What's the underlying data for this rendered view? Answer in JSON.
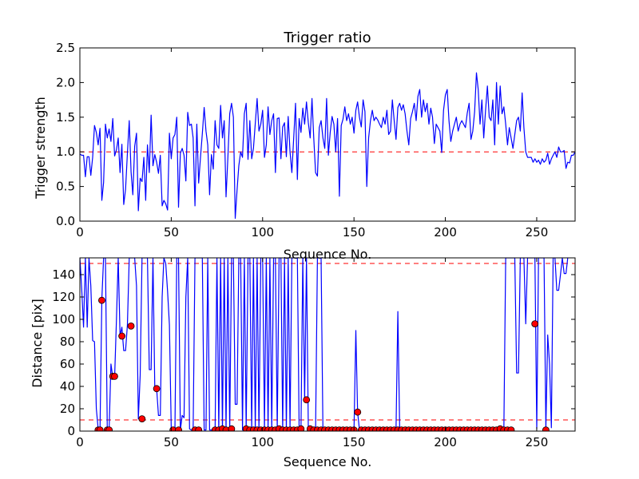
{
  "chart_data": [
    {
      "type": "line",
      "title": "Trigger ratio",
      "xlabel": "Sequence No.",
      "ylabel": "Trigger strength",
      "xlim": [
        0,
        271
      ],
      "ylim": [
        0.0,
        2.5
      ],
      "xticks": [
        0,
        50,
        100,
        150,
        200,
        250
      ],
      "yticks": [
        "0.0",
        "0.5",
        "1.0",
        "1.5",
        "2.0",
        "2.5"
      ],
      "line_color": "#0000ff",
      "reference_lines": [
        {
          "y": 1.0,
          "color": "#ff0000",
          "style": "dashed"
        }
      ],
      "series": [
        {
          "name": "Trigger strength",
          "x_start": 0,
          "x_step": 1,
          "values": [
            0.97,
            0.95,
            0.95,
            0.64,
            0.93,
            0.93,
            0.66,
            0.92,
            1.38,
            1.28,
            1.1,
            1.34,
            0.3,
            0.56,
            1.4,
            1.2,
            1.33,
            1.15,
            1.48,
            0.94,
            1.03,
            1.2,
            0.7,
            1.11,
            0.24,
            0.46,
            0.98,
            1.45,
            0.71,
            0.38,
            1.08,
            1.27,
            0.15,
            0.62,
            0.57,
            0.92,
            0.3,
            1.1,
            0.7,
            1.53,
            0.8,
            0.96,
            0.85,
            0.69,
            0.95,
            0.22,
            0.3,
            0.25,
            0.16,
            1.27,
            0.9,
            1.2,
            1.25,
            1.5,
            0.2,
            0.98,
            1.05,
            0.95,
            0.58,
            1.57,
            1.38,
            1.4,
            1.2,
            0.22,
            1.4,
            0.55,
            0.92,
            1.26,
            1.64,
            1.3,
            1.1,
            0.38,
            0.96,
            0.75,
            1.45,
            1.1,
            1.05,
            1.67,
            1.2,
            1.45,
            0.35,
            0.92,
            1.55,
            1.7,
            1.5,
            0.04,
            0.45,
            0.8,
            1.0,
            0.92,
            1.55,
            1.7,
            0.89,
            1.45,
            0.9,
            1.05,
            1.41,
            1.77,
            1.3,
            1.4,
            1.6,
            0.92,
            1.1,
            1.65,
            1.25,
            1.45,
            1.55,
            0.7,
            1.48,
            1.49,
            0.9,
            1.36,
            1.42,
            0.93,
            1.51,
            1.0,
            0.7,
            1.2,
            1.7,
            0.6,
            1.48,
            1.28,
            1.63,
            1.4,
            1.72,
            1.42,
            1.2,
            1.77,
            1.2,
            0.7,
            0.65,
            1.35,
            1.45,
            1.2,
            1.05,
            1.77,
            0.95,
            1.28,
            1.51,
            1.4,
            1.0,
            1.48,
            0.36,
            1.38,
            1.47,
            1.65,
            1.45,
            1.55,
            1.4,
            1.5,
            1.27,
            1.6,
            1.72,
            1.5,
            1.36,
            1.75,
            1.58,
            0.5,
            1.2,
            1.45,
            1.6,
            1.45,
            1.5,
            1.46,
            1.4,
            1.35,
            1.5,
            1.4,
            1.6,
            1.25,
            1.3,
            1.75,
            1.45,
            1.18,
            1.64,
            1.7,
            1.6,
            1.68,
            1.55,
            1.3,
            1.1,
            1.48,
            1.58,
            1.7,
            1.45,
            1.8,
            1.9,
            1.5,
            1.75,
            1.58,
            1.7,
            1.4,
            1.63,
            1.5,
            1.12,
            1.4,
            1.35,
            1.3,
            0.99,
            1.6,
            1.82,
            1.9,
            1.45,
            1.15,
            1.3,
            1.4,
            1.5,
            1.3,
            1.4,
            1.45,
            1.4,
            1.35,
            1.56,
            1.7,
            1.18,
            1.3,
            1.58,
            2.14,
            1.9,
            1.4,
            1.75,
            1.2,
            1.6,
            1.95,
            1.5,
            1.45,
            1.75,
            1.1,
            2.0,
            1.4,
            1.95,
            1.55,
            1.65,
            1.4,
            1.1,
            1.35,
            1.2,
            1.05,
            1.25,
            1.45,
            1.5,
            1.3,
            1.85,
            1.35,
            1.0,
            0.92,
            0.92,
            0.92,
            0.85,
            0.9,
            0.85,
            0.88,
            0.82,
            0.9,
            0.85,
            0.88,
            0.98,
            0.82,
            0.9,
            0.95,
            1.0,
            0.92,
            1.07,
            1.0,
            1.0,
            1.02,
            0.76,
            0.85,
            0.84,
            0.95,
            0.95,
            1.0,
            0.92,
            0.95,
            0.92,
            0.92,
            0.9,
            0.85,
            0.95,
            0.8,
            0.89
          ]
        }
      ]
    },
    {
      "type": "line",
      "title": "",
      "xlabel": "Sequence No.",
      "ylabel": "Distance [pix]",
      "xlim": [
        0,
        271
      ],
      "ylim": [
        0,
        155
      ],
      "xticks": [
        0,
        50,
        100,
        150,
        200,
        250
      ],
      "yticks": [
        0,
        20,
        40,
        60,
        80,
        100,
        120,
        140
      ],
      "line_color": "#0000ff",
      "marker_color": "#ff0000",
      "reference_lines": [
        {
          "y": 10,
          "color": "#ff0000",
          "style": "dashed"
        },
        {
          "y": 150,
          "color": "#ff0000",
          "style": "dashed"
        }
      ],
      "series": [
        {
          "name": "Distance",
          "x_start": 0,
          "x_step": 1,
          "values": [
            155,
            127,
            93,
            155,
            93,
            155,
            130,
            81,
            80,
            20,
            2,
            1,
            118,
            155,
            155,
            2,
            1,
            60,
            48,
            48,
            100,
            155,
            85,
            93,
            72,
            72,
            95,
            155,
            155,
            155,
            155,
            130,
            11,
            50,
            155,
            155,
            155,
            155,
            55,
            55,
            155,
            38,
            38,
            14,
            14,
            120,
            155,
            150,
            125,
            95,
            2,
            3,
            1,
            155,
            155,
            1,
            14,
            12,
            120,
            155,
            2,
            1,
            1,
            155,
            155,
            155,
            155,
            155,
            1,
            1,
            155,
            1,
            1,
            1,
            1,
            155,
            1,
            155,
            1,
            155,
            1,
            155,
            1,
            155,
            155,
            24,
            24,
            155,
            155,
            1,
            155,
            1,
            155,
            155,
            1,
            155,
            1,
            155,
            1,
            155,
            155,
            1,
            155,
            1,
            155,
            1,
            155,
            155,
            1,
            155,
            155,
            1,
            155,
            1,
            155,
            2,
            155,
            155,
            155,
            155,
            2,
            1,
            155,
            28,
            155,
            2,
            1,
            1,
            1,
            1,
            155,
            155,
            155,
            1,
            1,
            1,
            1,
            1,
            1,
            1,
            1,
            1,
            1,
            1,
            1,
            1,
            1,
            1,
            1,
            1,
            1,
            90,
            17,
            1,
            1,
            1,
            1,
            1,
            1,
            1,
            1,
            1,
            1,
            1,
            1,
            1,
            1,
            1,
            1,
            1,
            1,
            1,
            1,
            1,
            107,
            1,
            1,
            1,
            1,
            1,
            1,
            1,
            1,
            1,
            1,
            1,
            1,
            1,
            1,
            1,
            1,
            1,
            1,
            1,
            1,
            1,
            1,
            1,
            1,
            1,
            1,
            1,
            1,
            1,
            1,
            1,
            1,
            1,
            1,
            1,
            1,
            1,
            1,
            1,
            1,
            1,
            1,
            1,
            1,
            1,
            1,
            1,
            1,
            1,
            1,
            1,
            1,
            1,
            1,
            1,
            1,
            1,
            1,
            155,
            155,
            155,
            155,
            155,
            155,
            52,
            52,
            155,
            155,
            155,
            96,
            155,
            155,
            155,
            155,
            155,
            2,
            155,
            155,
            155,
            155,
            2,
            86,
            60,
            3,
            155,
            155,
            126,
            126,
            140,
            155,
            141,
            141,
            155
          ]
        },
        {
          "name": "Matches",
          "type": "scatter",
          "points": [
            [
              10,
              1
            ],
            [
              11,
              1
            ],
            [
              12,
              117
            ],
            [
              15,
              1
            ],
            [
              16,
              1
            ],
            [
              18,
              49
            ],
            [
              19,
              49
            ],
            [
              23,
              85
            ],
            [
              28,
              94
            ],
            [
              34,
              11
            ],
            [
              42,
              38
            ],
            [
              51,
              1
            ],
            [
              54,
              1
            ],
            [
              63,
              1
            ],
            [
              65,
              1
            ],
            [
              74,
              1
            ],
            [
              76,
              1
            ],
            [
              78,
              2
            ],
            [
              80,
              1
            ],
            [
              83,
              2
            ],
            [
              91,
              2
            ],
            [
              93,
              1
            ],
            [
              95,
              1
            ],
            [
              97,
              1
            ],
            [
              99,
              1
            ],
            [
              101,
              1
            ],
            [
              103,
              1
            ],
            [
              105,
              1
            ],
            [
              107,
              1
            ],
            [
              109,
              2
            ],
            [
              111,
              1
            ],
            [
              113,
              1
            ],
            [
              115,
              1
            ],
            [
              117,
              1
            ],
            [
              119,
              1
            ],
            [
              121,
              2
            ],
            [
              124,
              28
            ],
            [
              126,
              2
            ],
            [
              128,
              1
            ],
            [
              130,
              1
            ],
            [
              132,
              1
            ],
            [
              134,
              1
            ],
            [
              136,
              1
            ],
            [
              138,
              1
            ],
            [
              140,
              1
            ],
            [
              142,
              1
            ],
            [
              144,
              1
            ],
            [
              146,
              1
            ],
            [
              148,
              1
            ],
            [
              150,
              1
            ],
            [
              152,
              17
            ],
            [
              154,
              1
            ],
            [
              156,
              1
            ],
            [
              158,
              1
            ],
            [
              160,
              1
            ],
            [
              162,
              1
            ],
            [
              164,
              1
            ],
            [
              166,
              1
            ],
            [
              168,
              1
            ],
            [
              170,
              1
            ],
            [
              172,
              1
            ],
            [
              174,
              1
            ],
            [
              176,
              1
            ],
            [
              178,
              1
            ],
            [
              180,
              1
            ],
            [
              182,
              1
            ],
            [
              184,
              1
            ],
            [
              186,
              1
            ],
            [
              188,
              1
            ],
            [
              190,
              1
            ],
            [
              192,
              1
            ],
            [
              194,
              1
            ],
            [
              196,
              1
            ],
            [
              198,
              1
            ],
            [
              200,
              1
            ],
            [
              202,
              1
            ],
            [
              204,
              1
            ],
            [
              206,
              1
            ],
            [
              208,
              1
            ],
            [
              210,
              1
            ],
            [
              212,
              1
            ],
            [
              214,
              1
            ],
            [
              216,
              1
            ],
            [
              218,
              1
            ],
            [
              220,
              1
            ],
            [
              222,
              1
            ],
            [
              224,
              1
            ],
            [
              226,
              1
            ],
            [
              228,
              1
            ],
            [
              230,
              2
            ],
            [
              232,
              1
            ],
            [
              234,
              1
            ],
            [
              236,
              1
            ],
            [
              249,
              96
            ],
            [
              255,
              1
            ]
          ]
        }
      ]
    }
  ]
}
